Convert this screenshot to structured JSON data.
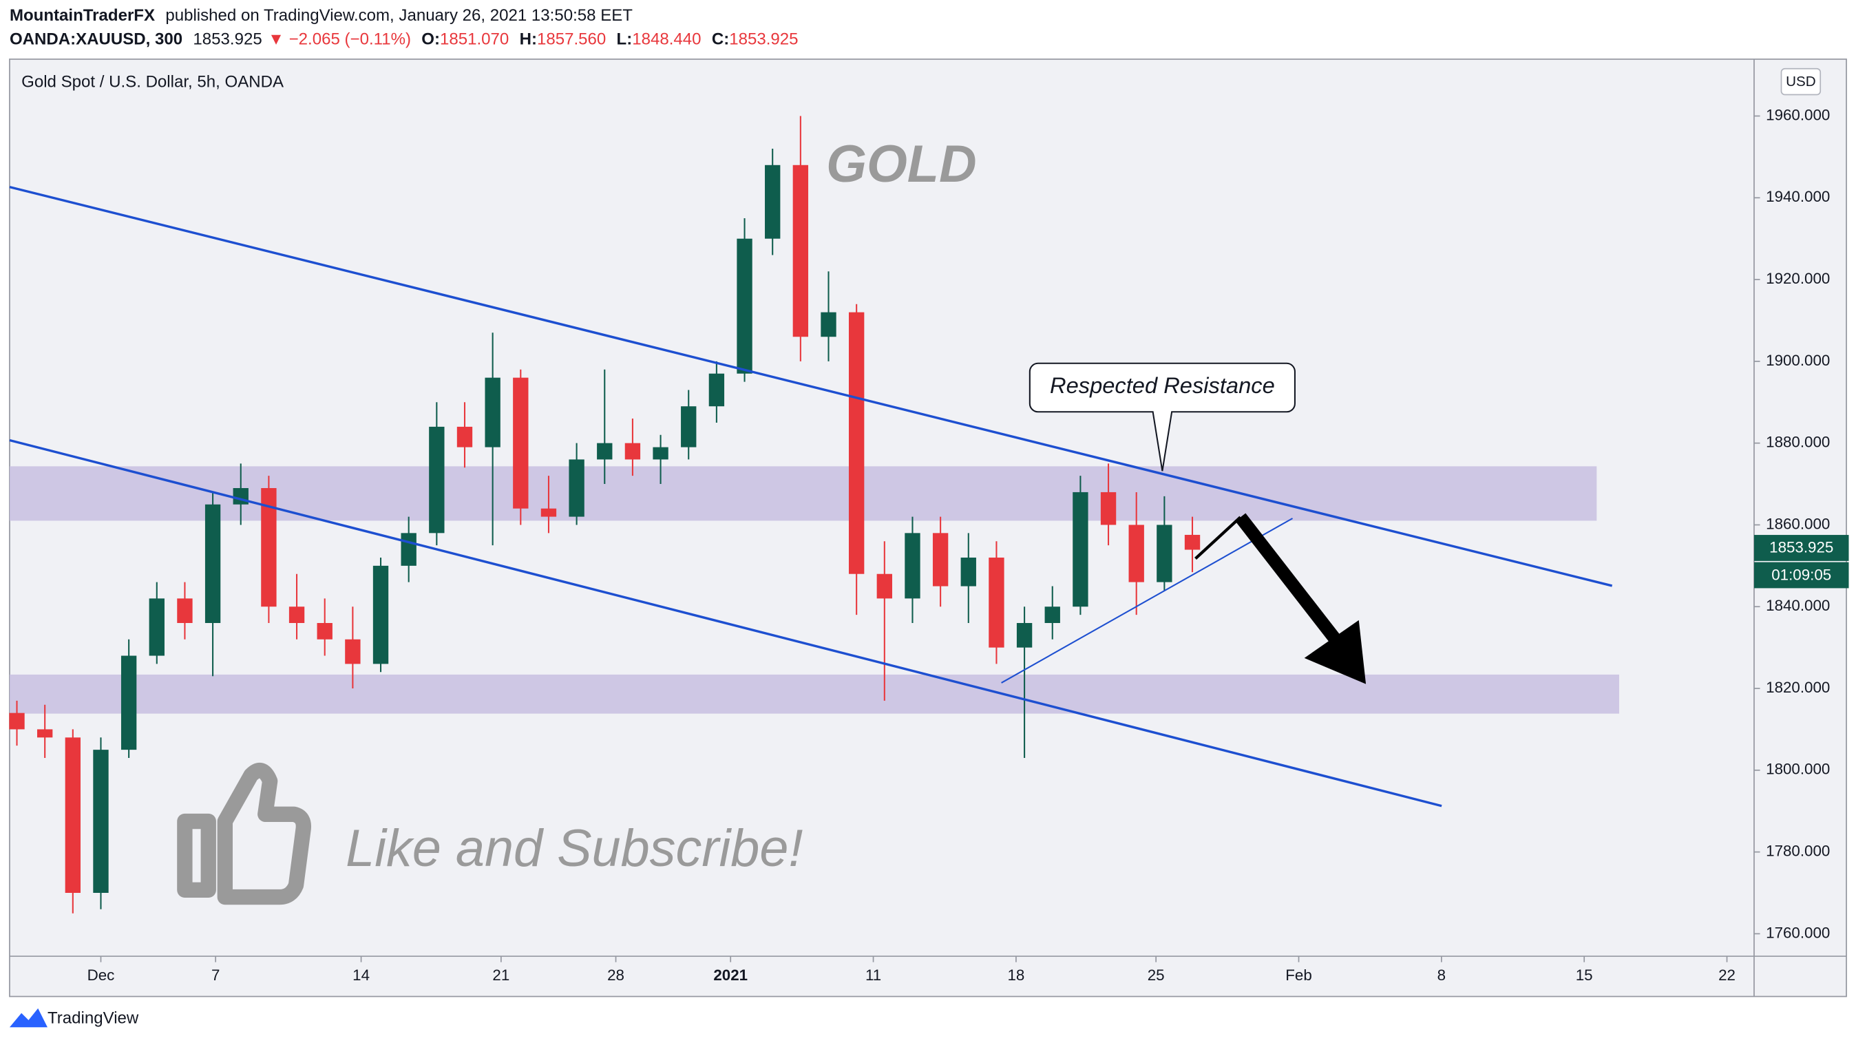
{
  "header": {
    "author": "MountainTraderFX",
    "published": "published on TradingView.com, January 26, 2021 13:50:58 EET",
    "symbol": "OANDA:XAUUSD, 300",
    "last": "1853.925",
    "change": "▼ −2.065 (−0.11%)",
    "o_label": "O:",
    "o": "1851.070",
    "h_label": "H:",
    "h": "1857.560",
    "l_label": "L:",
    "l": "1848.440",
    "c_label": "C:",
    "c": "1853.925",
    "currency": "USD",
    "price_tag": "1853.925",
    "countdown": "01:09:05",
    "brand": "TradingView"
  },
  "chart_data": {
    "type": "candlestick",
    "title": "Gold Spot / U.S. Dollar, 5h, OANDA",
    "x": [
      -3,
      -2,
      -1,
      0,
      1,
      2,
      3,
      4,
      5,
      6,
      7,
      8,
      9,
      10,
      11,
      12,
      13,
      14,
      15,
      16,
      17,
      18,
      19,
      20,
      21,
      22,
      23,
      24,
      25,
      26,
      27,
      28,
      29,
      30,
      31,
      32,
      33,
      34,
      35,
      36,
      37,
      38,
      39
    ],
    "open": [
      1814,
      1810,
      1808,
      1770,
      1805,
      1828,
      1842,
      1836,
      1865,
      1869,
      1840,
      1836,
      1832,
      1826,
      1850,
      1858,
      1884,
      1879,
      1896,
      1864,
      1862,
      1876,
      1880,
      1876,
      1879,
      1889,
      1897,
      1930,
      1948,
      1906,
      1912,
      1848,
      1842,
      1858,
      1845,
      1852,
      1830,
      1836,
      1840,
      1868,
      1860,
      1846,
      1857.56
    ],
    "high": [
      1817,
      1816,
      1810,
      1808,
      1832,
      1846,
      1846,
      1868,
      1875,
      1872,
      1848,
      1842,
      1840,
      1852,
      1862,
      1890,
      1890,
      1907,
      1898,
      1872,
      1880,
      1898,
      1886,
      1882,
      1893,
      1900,
      1935,
      1952,
      1960,
      1922,
      1914,
      1856,
      1862,
      1862,
      1858,
      1856,
      1840,
      1845,
      1872,
      1875,
      1868,
      1867,
      1862
    ],
    "low": [
      1806,
      1803,
      1765,
      1766,
      1803,
      1826,
      1832,
      1823,
      1860,
      1836,
      1832,
      1828,
      1820,
      1824,
      1846,
      1855,
      1874,
      1855,
      1860,
      1858,
      1860,
      1870,
      1872,
      1870,
      1876,
      1885,
      1895,
      1926,
      1900,
      1900,
      1838,
      1817,
      1836,
      1840,
      1836,
      1826,
      1803,
      1832,
      1838,
      1855,
      1838,
      1844,
      1848.44
    ],
    "close": [
      1810,
      1808,
      1770,
      1805,
      1828,
      1842,
      1836,
      1865,
      1869,
      1840,
      1836,
      1832,
      1826,
      1850,
      1858,
      1884,
      1879,
      1896,
      1864,
      1862,
      1876,
      1880,
      1876,
      1879,
      1889,
      1897,
      1930,
      1948,
      1906,
      1912,
      1848,
      1842,
      1858,
      1845,
      1852,
      1830,
      1836,
      1840,
      1868,
      1860,
      1846,
      1860,
      1853.925
    ],
    "up_color": "#0f5d4d",
    "down_color": "#e8373c",
    "xlim": [
      -3.26,
      59.07
    ],
    "ylim": [
      1754.5,
      1973.9
    ],
    "xticks": [
      {
        "value": 0,
        "label": "Dec"
      },
      {
        "value": 4.1,
        "label": "7"
      },
      {
        "value": 9.3,
        "label": "14"
      },
      {
        "value": 14.3,
        "label": "21"
      },
      {
        "value": 18.4,
        "label": "28"
      },
      {
        "value": 22.5,
        "label": "2021"
      },
      {
        "value": 27.6,
        "label": "11"
      },
      {
        "value": 32.7,
        "label": "18"
      },
      {
        "value": 37.7,
        "label": "25"
      },
      {
        "value": 42.8,
        "label": "Feb"
      },
      {
        "value": 47.9,
        "label": "8"
      },
      {
        "value": 53.0,
        "label": "15"
      },
      {
        "value": 58.1,
        "label": "22"
      }
    ],
    "yticks": [
      {
        "value": 1760,
        "label": "1760.000"
      },
      {
        "value": 1780,
        "label": "1780.000"
      },
      {
        "value": 1800,
        "label": "1800.000"
      },
      {
        "value": 1820,
        "label": "1820.000"
      },
      {
        "value": 1840,
        "label": "1840.000"
      },
      {
        "value": 1860,
        "label": "1860.000"
      },
      {
        "value": 1880,
        "label": "1880.000"
      },
      {
        "value": 1900,
        "label": "1900.000"
      },
      {
        "value": 1920,
        "label": "1920.000"
      },
      {
        "value": 1940,
        "label": "1940.000"
      },
      {
        "value": 1960,
        "label": "1960.000"
      }
    ],
    "annotations": [
      "GOLD",
      "Respected Resistance",
      "Like and Subscribe!"
    ]
  }
}
